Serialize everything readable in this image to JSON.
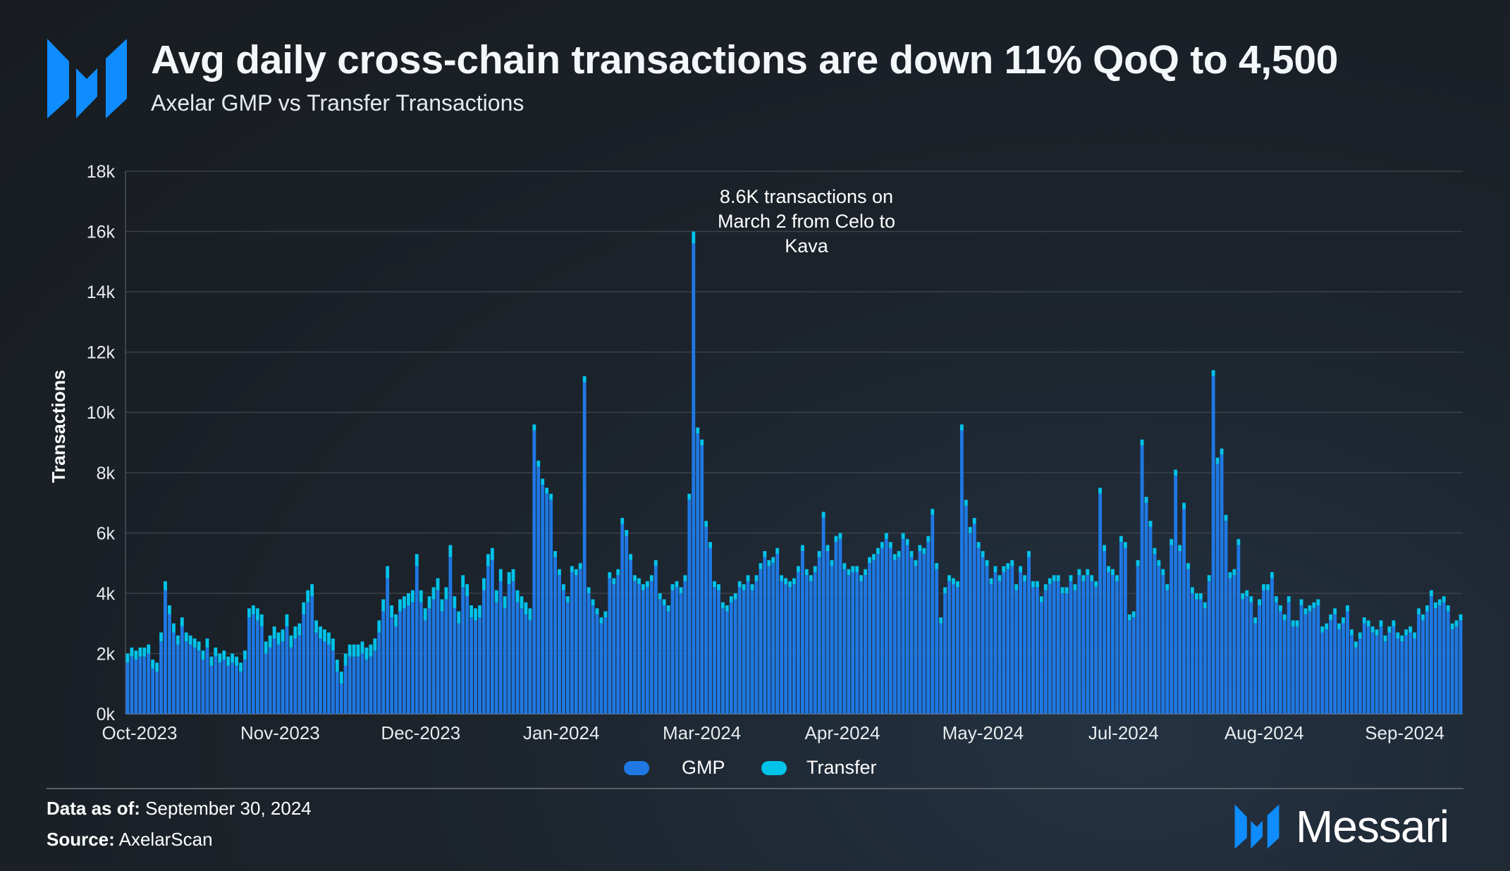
{
  "header": {
    "title": "Avg daily cross-chain transactions are down 11% QoQ to 4,500",
    "subtitle": "Axelar GMP vs Transfer Transactions"
  },
  "footer": {
    "data_as_of_label": "Data as of:",
    "data_as_of_value": "September 30, 2024",
    "source_label": "Source:",
    "source_value": "AxelarScan",
    "brand": "Messari"
  },
  "colors": {
    "gmp": "#1f78e3",
    "transfer": "#00c3ea",
    "logo": "#0f8cff"
  },
  "chart_data": {
    "type": "bar",
    "stacked": true,
    "ylabel": "Transactions",
    "xlabel": "",
    "ylim": [
      0,
      18000
    ],
    "yticks": [
      "0k",
      "2k",
      "4k",
      "6k",
      "8k",
      "10k",
      "12k",
      "14k",
      "16k",
      "18k"
    ],
    "xticks": [
      "Oct-2023",
      "Nov-2023",
      "Dec-2023",
      "Jan-2024",
      "Mar-2024",
      "Apr-2024",
      "May-2024",
      "Jul-2024",
      "Aug-2024",
      "Sep-2024"
    ],
    "grid": true,
    "legend": "bottom-center",
    "annotation": [
      "8.6K transactions on",
      "March 2 from Celo to",
      "Kava"
    ],
    "unit": "thousands of transactions per day",
    "series": [
      {
        "name": "GMP",
        "values": [
          1.7,
          1.9,
          1.8,
          1.9,
          1.9,
          2.0,
          1.5,
          1.4,
          2.4,
          4.1,
          3.3,
          2.7,
          2.3,
          2.9,
          2.4,
          2.3,
          2.2,
          2.1,
          1.8,
          2.2,
          1.6,
          1.9,
          1.7,
          1.8,
          1.6,
          1.7,
          1.6,
          1.4,
          1.8,
          3.2,
          3.3,
          3.1,
          2.9,
          2.0,
          2.2,
          2.5,
          2.3,
          2.4,
          2.9,
          2.2,
          2.5,
          2.6,
          3.3,
          3.7,
          3.9,
          2.7,
          2.5,
          2.4,
          2.3,
          2.1,
          1.4,
          1.0,
          1.6,
          1.9,
          1.9,
          1.9,
          2.0,
          1.8,
          1.9,
          2.1,
          2.7,
          3.4,
          4.5,
          3.2,
          2.9,
          3.4,
          3.5,
          3.6,
          3.7,
          4.9,
          3.7,
          3.1,
          3.5,
          3.8,
          4.1,
          3.4,
          3.8,
          5.2,
          3.5,
          3.0,
          4.2,
          3.9,
          3.2,
          3.1,
          3.2,
          4.1,
          4.9,
          5.1,
          3.7,
          4.4,
          3.5,
          4.3,
          4.4,
          3.7,
          3.5,
          3.3,
          3.1,
          9.4,
          8.2,
          7.6,
          7.3,
          7.1,
          5.2,
          4.6,
          4.1,
          3.7,
          4.7,
          4.6,
          4.8,
          11.0,
          4.0,
          3.6,
          3.3,
          3.0,
          3.2,
          4.5,
          4.3,
          4.6,
          6.3,
          5.9,
          5.1,
          4.4,
          4.3,
          4.1,
          4.2,
          4.4,
          4.9,
          3.8,
          3.6,
          3.4,
          4.1,
          4.2,
          4.0,
          4.4,
          7.1,
          15.6,
          9.3,
          8.9,
          6.2,
          5.5,
          4.2,
          4.1,
          3.5,
          3.4,
          3.7,
          3.8,
          4.2,
          4.1,
          4.4,
          4.1,
          4.4,
          4.8,
          5.2,
          4.9,
          5.0,
          5.3,
          4.4,
          4.3,
          4.2,
          4.3,
          4.7,
          5.4,
          4.6,
          4.4,
          4.7,
          5.2,
          6.5,
          5.4,
          4.9,
          5.7,
          5.8,
          4.8,
          4.6,
          4.7,
          4.7,
          4.4,
          4.6,
          5.0,
          5.1,
          5.3,
          5.5,
          5.8,
          5.5,
          5.1,
          5.2,
          5.8,
          5.6,
          5.2,
          4.9,
          5.4,
          5.3,
          5.7,
          6.6,
          4.8,
          3.0,
          4.0,
          4.4,
          4.3,
          4.2,
          9.4,
          6.9,
          6.0,
          6.3,
          5.5,
          5.2,
          4.9,
          4.3,
          4.7,
          4.4,
          4.7,
          4.8,
          4.9,
          4.1,
          4.7,
          4.4,
          5.2,
          4.2,
          4.2,
          3.7,
          4.1,
          4.3,
          4.4,
          4.4,
          4.0,
          4.0,
          4.4,
          4.1,
          4.6,
          4.4,
          4.6,
          4.4,
          4.2,
          7.3,
          5.4,
          4.7,
          4.6,
          4.4,
          5.7,
          5.5,
          3.1,
          3.2,
          4.9,
          8.9,
          7.0,
          6.2,
          5.3,
          4.9,
          4.6,
          4.1,
          5.6,
          7.9,
          5.4,
          6.8,
          4.8,
          4.0,
          3.8,
          3.8,
          3.5,
          4.4,
          11.2,
          8.3,
          8.6,
          6.4,
          4.5,
          4.6,
          5.6,
          3.8,
          3.9,
          3.7,
          3.0,
          3.6,
          4.1,
          4.1,
          4.5,
          3.7,
          3.4,
          3.1,
          3.7,
          2.9,
          2.9,
          3.6,
          3.3,
          3.4,
          3.5,
          3.6,
          2.7,
          2.8,
          3.1,
          3.3,
          2.8,
          3.0,
          3.4,
          2.6,
          2.2,
          2.5,
          3.0,
          2.9,
          2.7,
          2.6,
          2.9,
          2.4,
          2.7,
          2.9,
          2.5,
          2.4,
          2.6,
          2.7,
          2.5,
          3.3,
          3.1,
          3.4,
          3.9,
          3.5,
          3.6,
          3.7,
          3.4,
          2.8,
          2.9,
          3.1
        ]
      },
      {
        "name": "Transfer",
        "values": [
          0.3,
          0.3,
          0.3,
          0.3,
          0.3,
          0.3,
          0.3,
          0.3,
          0.3,
          0.3,
          0.3,
          0.3,
          0.3,
          0.3,
          0.3,
          0.3,
          0.3,
          0.3,
          0.3,
          0.3,
          0.3,
          0.3,
          0.3,
          0.3,
          0.3,
          0.3,
          0.3,
          0.3,
          0.3,
          0.3,
          0.3,
          0.4,
          0.4,
          0.4,
          0.4,
          0.4,
          0.4,
          0.4,
          0.4,
          0.4,
          0.4,
          0.4,
          0.4,
          0.4,
          0.4,
          0.4,
          0.4,
          0.4,
          0.4,
          0.4,
          0.4,
          0.4,
          0.4,
          0.4,
          0.4,
          0.4,
          0.4,
          0.4,
          0.4,
          0.4,
          0.4,
          0.4,
          0.4,
          0.4,
          0.4,
          0.4,
          0.4,
          0.4,
          0.4,
          0.4,
          0.4,
          0.4,
          0.4,
          0.4,
          0.4,
          0.4,
          0.4,
          0.4,
          0.4,
          0.4,
          0.4,
          0.4,
          0.4,
          0.4,
          0.4,
          0.4,
          0.4,
          0.4,
          0.4,
          0.4,
          0.4,
          0.4,
          0.4,
          0.4,
          0.4,
          0.4,
          0.4,
          0.2,
          0.2,
          0.2,
          0.2,
          0.2,
          0.2,
          0.2,
          0.2,
          0.2,
          0.2,
          0.2,
          0.2,
          0.2,
          0.2,
          0.2,
          0.2,
          0.2,
          0.2,
          0.2,
          0.2,
          0.2,
          0.2,
          0.2,
          0.2,
          0.2,
          0.2,
          0.2,
          0.2,
          0.2,
          0.2,
          0.2,
          0.2,
          0.2,
          0.2,
          0.2,
          0.2,
          0.2,
          0.2,
          0.4,
          0.2,
          0.2,
          0.2,
          0.2,
          0.2,
          0.2,
          0.2,
          0.2,
          0.2,
          0.2,
          0.2,
          0.2,
          0.2,
          0.2,
          0.2,
          0.2,
          0.2,
          0.2,
          0.2,
          0.2,
          0.2,
          0.2,
          0.2,
          0.2,
          0.2,
          0.2,
          0.2,
          0.2,
          0.2,
          0.2,
          0.2,
          0.2,
          0.2,
          0.2,
          0.2,
          0.2,
          0.2,
          0.2,
          0.2,
          0.2,
          0.2,
          0.2,
          0.2,
          0.2,
          0.2,
          0.2,
          0.2,
          0.2,
          0.2,
          0.2,
          0.2,
          0.2,
          0.2,
          0.2,
          0.2,
          0.2,
          0.2,
          0.2,
          0.2,
          0.2,
          0.2,
          0.2,
          0.2,
          0.2,
          0.2,
          0.2,
          0.2,
          0.2,
          0.2,
          0.2,
          0.2,
          0.2,
          0.2,
          0.2,
          0.2,
          0.2,
          0.2,
          0.2,
          0.2,
          0.2,
          0.2,
          0.2,
          0.2,
          0.2,
          0.2,
          0.2,
          0.2,
          0.2,
          0.2,
          0.2,
          0.2,
          0.2,
          0.2,
          0.2,
          0.2,
          0.2,
          0.2,
          0.2,
          0.2,
          0.2,
          0.2,
          0.2,
          0.2,
          0.2,
          0.2,
          0.2,
          0.2,
          0.2,
          0.2,
          0.2,
          0.2,
          0.2,
          0.2,
          0.2,
          0.2,
          0.2,
          0.2,
          0.2,
          0.2,
          0.2,
          0.2,
          0.2,
          0.2,
          0.2,
          0.2,
          0.2,
          0.2,
          0.2,
          0.2,
          0.2,
          0.2,
          0.2,
          0.2,
          0.2,
          0.2,
          0.2,
          0.2,
          0.2,
          0.2,
          0.2,
          0.2,
          0.2,
          0.2,
          0.2,
          0.2,
          0.2,
          0.2,
          0.2,
          0.2,
          0.2,
          0.2,
          0.2,
          0.2,
          0.2,
          0.2,
          0.2,
          0.2,
          0.2,
          0.2,
          0.2,
          0.2,
          0.2,
          0.2,
          0.2,
          0.2,
          0.2,
          0.2,
          0.2,
          0.2,
          0.2,
          0.2,
          0.2,
          0.2,
          0.2,
          0.2,
          0.2,
          0.2,
          0.2,
          0.2,
          0.2,
          0.2,
          0.2,
          0.2
        ]
      }
    ]
  }
}
